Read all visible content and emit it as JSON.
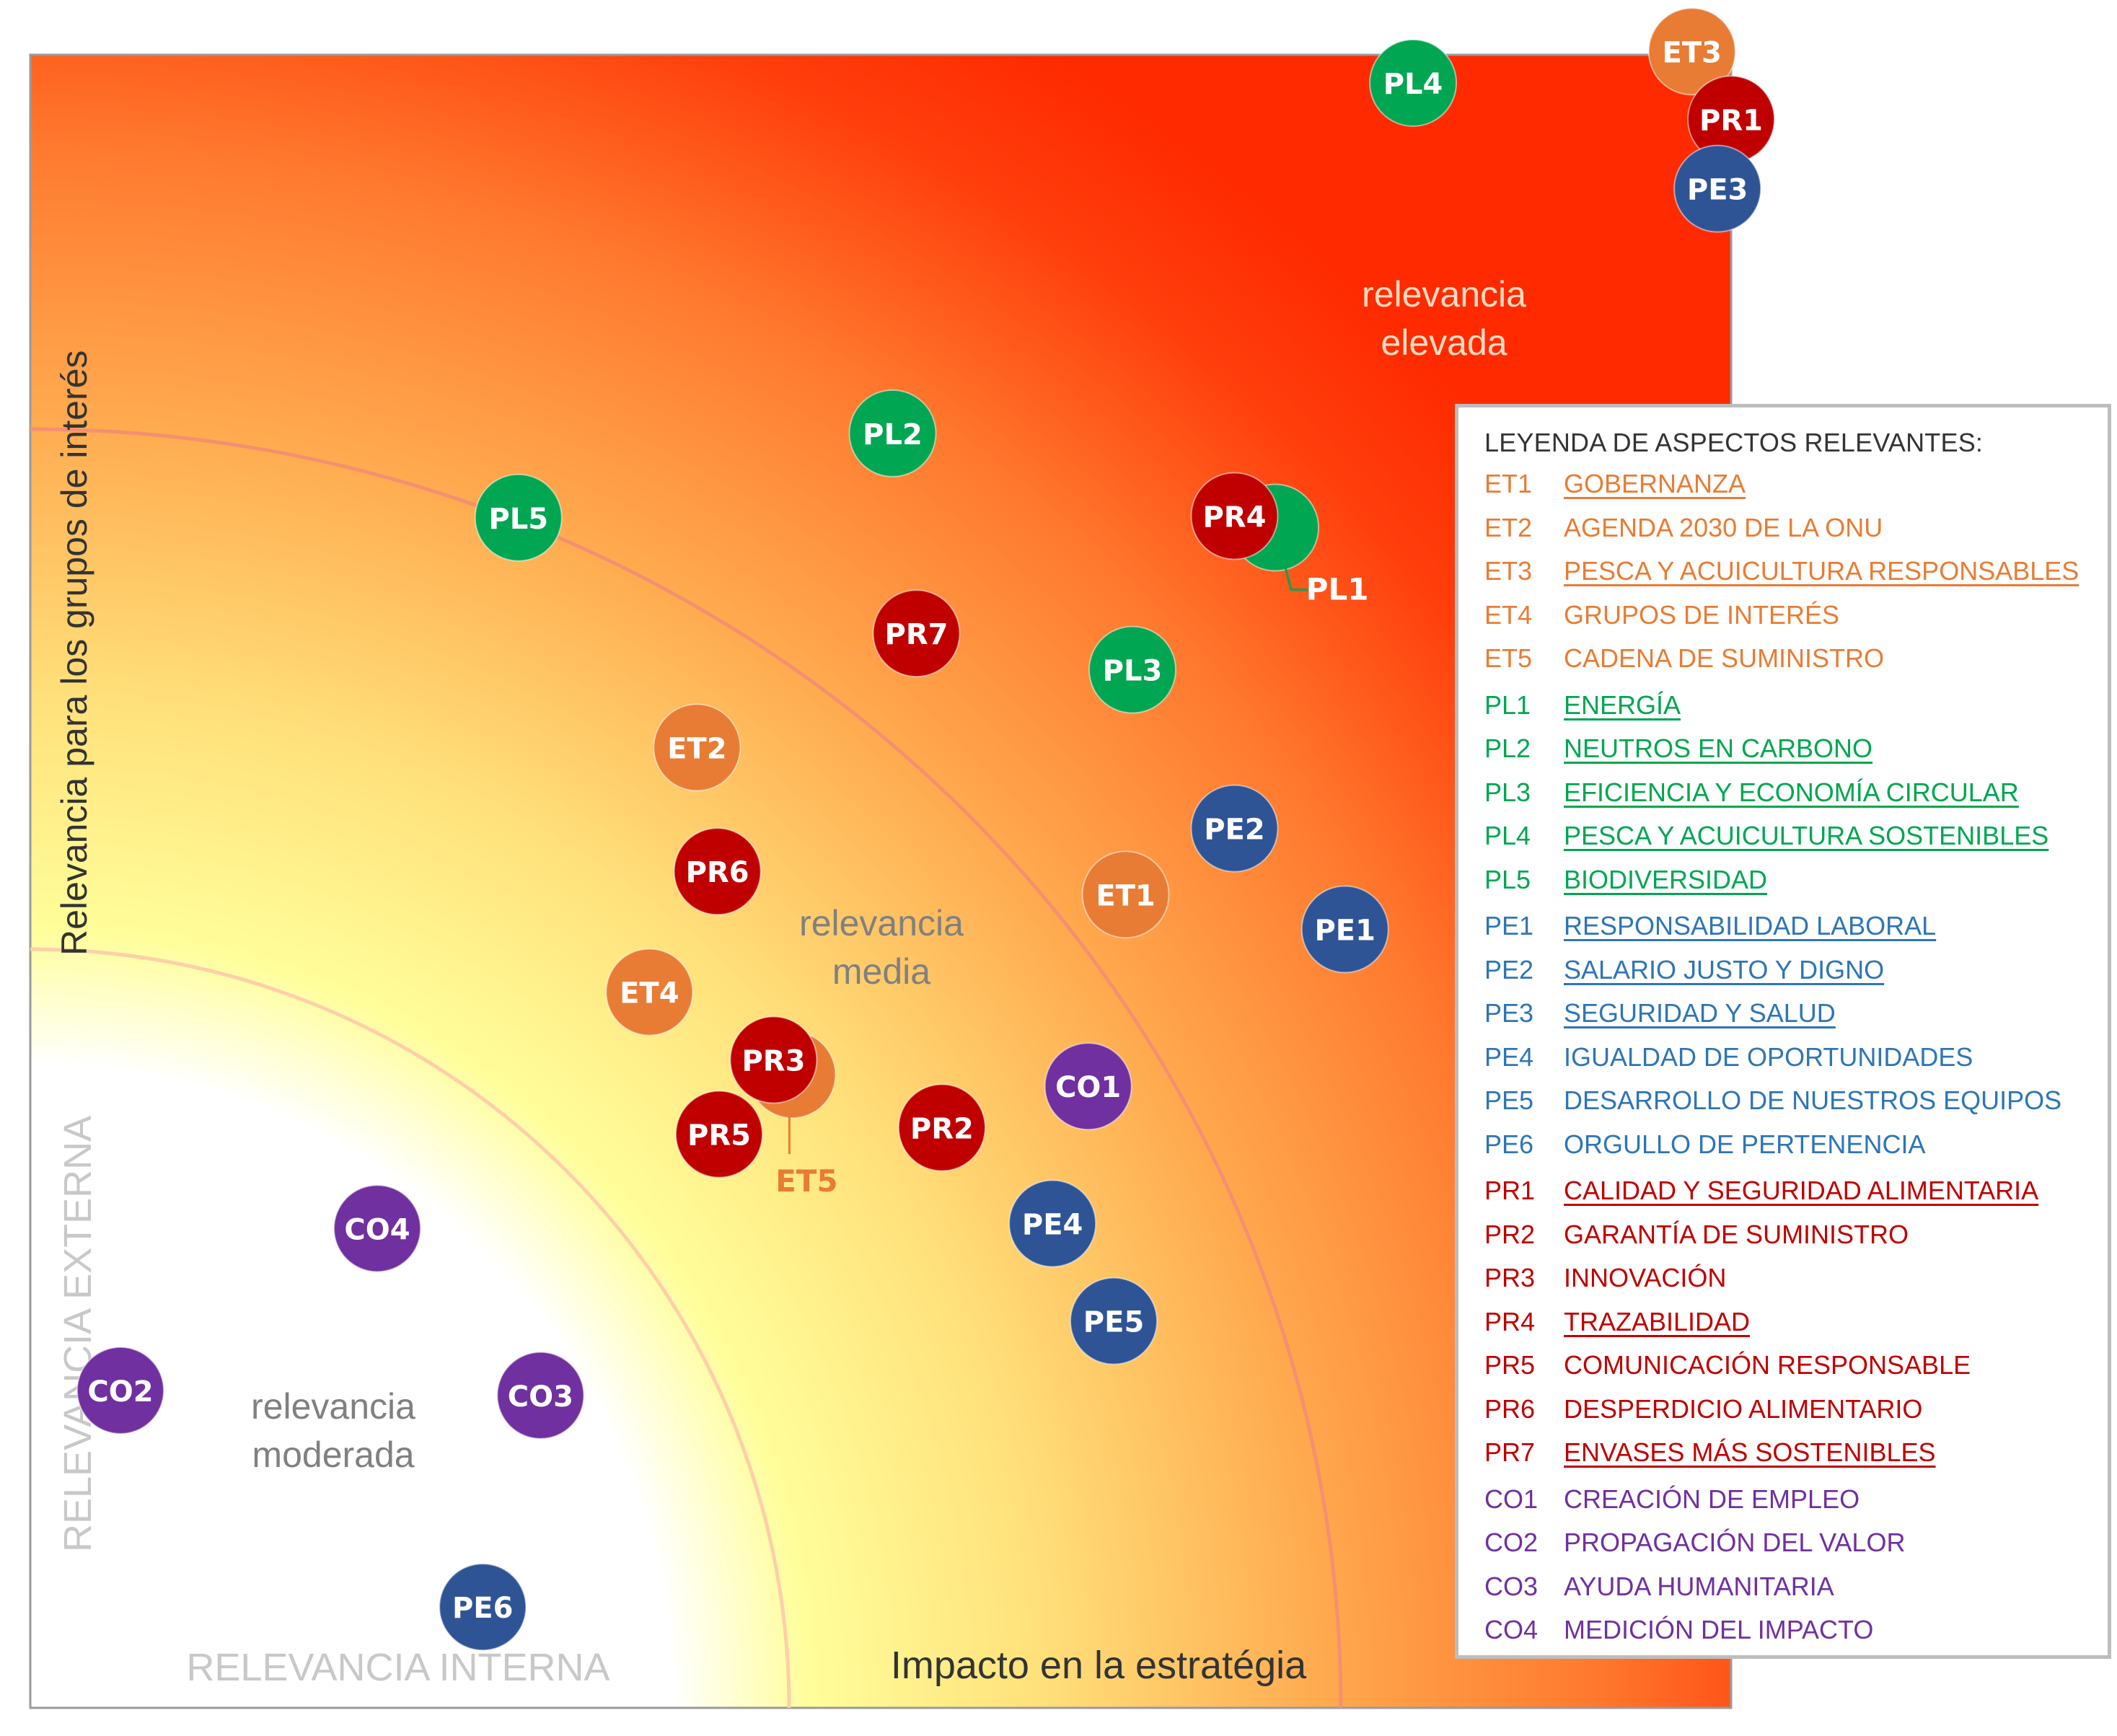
{
  "chart_data": {
    "type": "scatter",
    "xlabel": "Impacto en la estratégia",
    "ylabel": "Relevancia para los grupos de interés",
    "corner_labels": {
      "internal": "RELEVANCIA INTERNA",
      "external": "RELEVANCIA EXTERNA"
    },
    "zones": [
      {
        "name": "relevancia moderada",
        "lines": [
          "relevancia",
          "moderada"
        ]
      },
      {
        "name": "relevancia media",
        "lines": [
          "relevancia",
          "media"
        ]
      },
      {
        "name": "relevancia elevada",
        "lines": [
          "relevancia",
          "elevada"
        ]
      }
    ],
    "group_colors": {
      "ET": "#E87C34",
      "PL": "#00A651",
      "PE": "#2E5496",
      "PR": "#C00000",
      "CO": "#7030A0"
    },
    "legend_colors": {
      "ET": "#E87C34",
      "PL": "#00A651",
      "PE": "#2E75B6",
      "PR": "#C00000",
      "CO": "#7030A0"
    },
    "xlim": [
      0,
      100
    ],
    "ylim": [
      0,
      100
    ],
    "points": [
      {
        "id": "PL4",
        "group": "PL",
        "x": 81.3,
        "y": 98.3
      },
      {
        "id": "ET3",
        "group": "ET",
        "x": 97.7,
        "y": 100.2
      },
      {
        "id": "PR1",
        "group": "PR",
        "x": 100.0,
        "y": 96.1
      },
      {
        "id": "PE3",
        "group": "PE",
        "x": 99.2,
        "y": 91.9
      },
      {
        "id": "PL2",
        "group": "PL",
        "x": 50.7,
        "y": 77.1
      },
      {
        "id": "PL5",
        "group": "PL",
        "x": 28.7,
        "y": 72.0
      },
      {
        "id": "PL1",
        "group": "PL",
        "x": 73.2,
        "y": 71.4,
        "callout": true
      },
      {
        "id": "PR4",
        "group": "PR",
        "x": 70.8,
        "y": 72.1
      },
      {
        "id": "PR7",
        "group": "PR",
        "x": 52.1,
        "y": 65.0
      },
      {
        "id": "PL3",
        "group": "PL",
        "x": 64.8,
        "y": 62.8
      },
      {
        "id": "ET2",
        "group": "ET",
        "x": 39.2,
        "y": 58.1
      },
      {
        "id": "PR6",
        "group": "PR",
        "x": 40.4,
        "y": 50.6
      },
      {
        "id": "PE2",
        "group": "PE",
        "x": 70.8,
        "y": 53.2
      },
      {
        "id": "ET1",
        "group": "ET",
        "x": 64.4,
        "y": 49.2
      },
      {
        "id": "PE1",
        "group": "PE",
        "x": 77.3,
        "y": 47.1
      },
      {
        "id": "ET4",
        "group": "ET",
        "x": 36.4,
        "y": 43.3
      },
      {
        "id": "ET5",
        "group": "ET",
        "x": 44.8,
        "y": 38.3,
        "callout": true
      },
      {
        "id": "PR3",
        "group": "PR",
        "x": 43.7,
        "y": 39.2
      },
      {
        "id": "PR5",
        "group": "PR",
        "x": 40.5,
        "y": 34.7
      },
      {
        "id": "PR2",
        "group": "PR",
        "x": 53.6,
        "y": 35.1
      },
      {
        "id": "CO1",
        "group": "CO",
        "x": 62.2,
        "y": 37.6
      },
      {
        "id": "PE4",
        "group": "PE",
        "x": 60.1,
        "y": 29.3
      },
      {
        "id": "PE5",
        "group": "PE",
        "x": 63.7,
        "y": 23.4
      },
      {
        "id": "CO4",
        "group": "CO",
        "x": 20.4,
        "y": 29.0
      },
      {
        "id": "CO2",
        "group": "CO",
        "x": 5.3,
        "y": 19.2
      },
      {
        "id": "CO3",
        "group": "CO",
        "x": 30.0,
        "y": 18.9
      },
      {
        "id": "PE6",
        "group": "PE",
        "x": 26.6,
        "y": 6.1
      }
    ]
  },
  "legend": {
    "title": "LEYENDA DE ASPECTOS RELEVANTES:",
    "items": [
      {
        "code": "ET1",
        "group": "ET",
        "text": "GOBERNANZA",
        "underline": true
      },
      {
        "code": "ET2",
        "group": "ET",
        "text": "AGENDA 2030 DE LA ONU",
        "underline": false
      },
      {
        "code": "ET3",
        "group": "ET",
        "text": "PESCA Y ACUICULTURA RESPONSABLES",
        "underline": true
      },
      {
        "code": "ET4",
        "group": "ET",
        "text": "GRUPOS DE INTERÉS",
        "underline": false
      },
      {
        "code": "ET5",
        "group": "ET",
        "text": "CADENA DE SUMINISTRO",
        "underline": false
      },
      {
        "code": "PL1",
        "group": "PL",
        "text": "ENERGÍA",
        "underline": true
      },
      {
        "code": "PL2",
        "group": "PL",
        "text": "NEUTROS EN CARBONO",
        "underline": true
      },
      {
        "code": "PL3",
        "group": "PL",
        "text": "EFICIENCIA Y ECONOMÍA CIRCULAR",
        "underline": true
      },
      {
        "code": "PL4",
        "group": "PL",
        "text": "PESCA Y ACUICULTURA SOSTENIBLES",
        "underline": true
      },
      {
        "code": "PL5",
        "group": "PL",
        "text": "BIODIVERSIDAD",
        "underline": true
      },
      {
        "code": "PE1",
        "group": "PE",
        "text": "RESPONSABILIDAD LABORAL",
        "underline": true
      },
      {
        "code": "PE2",
        "group": "PE",
        "text": "SALARIO JUSTO Y DIGNO",
        "underline": true
      },
      {
        "code": "PE3",
        "group": "PE",
        "text": "SEGURIDAD Y SALUD",
        "underline": true
      },
      {
        "code": "PE4",
        "group": "PE",
        "text": "IGUALDAD DE OPORTUNIDADES",
        "underline": false
      },
      {
        "code": "PE5",
        "group": "PE",
        "text": "DESARROLLO DE NUESTROS EQUIPOS",
        "underline": false
      },
      {
        "code": "PE6",
        "group": "PE",
        "text": "ORGULLO DE PERTENENCIA",
        "underline": false
      },
      {
        "code": "PR1",
        "group": "PR",
        "text": "CALIDAD Y SEGURIDAD ALIMENTARIA",
        "underline": true
      },
      {
        "code": "PR2",
        "group": "PR",
        "text": "GARANTÍA DE SUMINISTRO",
        "underline": false
      },
      {
        "code": "PR3",
        "group": "PR",
        "text": "INNOVACIÓN",
        "underline": false
      },
      {
        "code": "PR4",
        "group": "PR",
        "text": "TRAZABILIDAD",
        "underline": true
      },
      {
        "code": "PR5",
        "group": "PR",
        "text": "COMUNICACIÓN RESPONSABLE",
        "underline": false
      },
      {
        "code": "PR6",
        "group": "PR",
        "text": "DESPERDICIO ALIMENTARIO",
        "underline": false
      },
      {
        "code": "PR7",
        "group": "PR",
        "text": "ENVASES MÁS SOSTENIBLES",
        "underline": true
      },
      {
        "code": "CO1",
        "group": "CO",
        "text": "CREACIÓN DE EMPLEO",
        "underline": false
      },
      {
        "code": "CO2",
        "group": "CO",
        "text": "PROPAGACIÓN DEL VALOR",
        "underline": false
      },
      {
        "code": "CO3",
        "group": "CO",
        "text": "AYUDA HUMANITARIA",
        "underline": false
      },
      {
        "code": "CO4",
        "group": "CO",
        "text": "MEDICIÓN DEL IMPACTO",
        "underline": false
      }
    ]
  }
}
